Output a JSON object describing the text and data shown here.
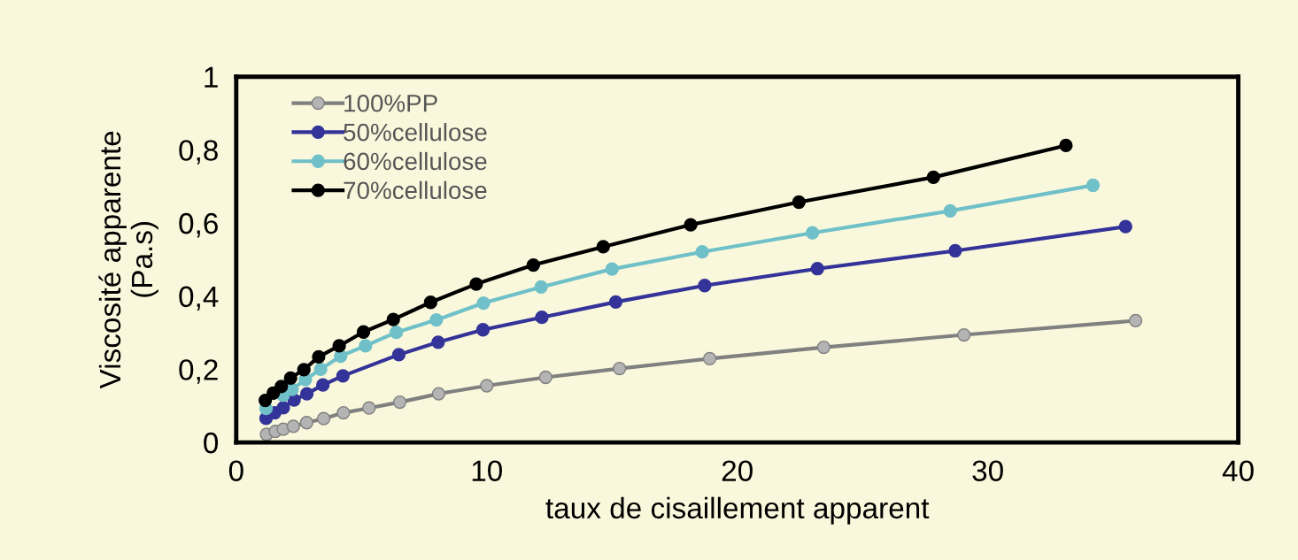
{
  "chart_data": {
    "type": "line",
    "xlabel": "taux de cisaillement apparent",
    "ylabel": "Viscosité apparente\n(Pa.s)",
    "xlim": [
      0,
      40
    ],
    "xticks": [
      0,
      10,
      20,
      30,
      40
    ],
    "ylim": [
      0,
      1
    ],
    "yticks": [
      {
        "value": 0,
        "label": "0"
      },
      {
        "value": 0.2,
        "label": "0,2"
      },
      {
        "value": 0.4,
        "label": "0,4"
      },
      {
        "value": 0.6,
        "label": "0,6"
      },
      {
        "value": 0.8,
        "label": "0,8"
      },
      {
        "value": 1,
        "label": "1"
      }
    ],
    "grid": false,
    "legend": "top left",
    "marker": "circle",
    "line_style": "solid",
    "series": [
      {
        "name": "100%PP",
        "color": "#808080",
        "x": [
          1.21,
          1.56,
          1.88,
          2.28,
          2.81,
          3.49,
          4.28,
          5.3,
          6.53,
          8.08,
          10.0,
          12.35,
          15.3,
          18.9,
          23.45,
          29.05,
          35.9
        ],
        "values": [
          0.022,
          0.03,
          0.036,
          0.044,
          0.054,
          0.065,
          0.081,
          0.094,
          0.11,
          0.133,
          0.155,
          0.178,
          0.202,
          0.229,
          0.26,
          0.294,
          0.333
        ]
      },
      {
        "name": "50%cellulose",
        "color": "#333399",
        "x": [
          1.19,
          1.54,
          1.88,
          2.31,
          2.82,
          3.46,
          4.26,
          6.49,
          8.06,
          9.85,
          12.2,
          15.15,
          18.7,
          23.2,
          28.7,
          35.5
        ],
        "values": [
          0.066,
          0.081,
          0.095,
          0.116,
          0.133,
          0.157,
          0.182,
          0.24,
          0.274,
          0.308,
          0.342,
          0.384,
          0.429,
          0.475,
          0.524,
          0.59
        ]
      },
      {
        "name": "60%cellulose",
        "color": "#6fc0c8",
        "x": [
          1.19,
          1.55,
          1.87,
          2.23,
          2.76,
          3.37,
          4.17,
          5.16,
          6.39,
          7.99,
          9.87,
          12.17,
          15.0,
          18.6,
          23.0,
          28.5,
          34.2
        ],
        "values": [
          0.093,
          null,
          0.129,
          0.145,
          0.172,
          0.2,
          0.236,
          0.264,
          0.301,
          0.335,
          0.381,
          0.425,
          0.474,
          0.521,
          0.573,
          0.633,
          0.703
        ]
      },
      {
        "name": "70%cellulose",
        "color": "#000000",
        "x": [
          1.16,
          1.48,
          1.8,
          2.17,
          2.7,
          3.29,
          4.11,
          5.08,
          6.27,
          7.76,
          9.58,
          11.86,
          14.65,
          18.14,
          22.46,
          27.83,
          33.12
        ],
        "values": [
          0.115,
          0.135,
          0.153,
          0.176,
          0.199,
          0.234,
          0.264,
          0.302,
          0.336,
          0.383,
          0.433,
          0.485,
          0.535,
          0.595,
          0.657,
          0.725,
          0.812
        ]
      }
    ]
  }
}
